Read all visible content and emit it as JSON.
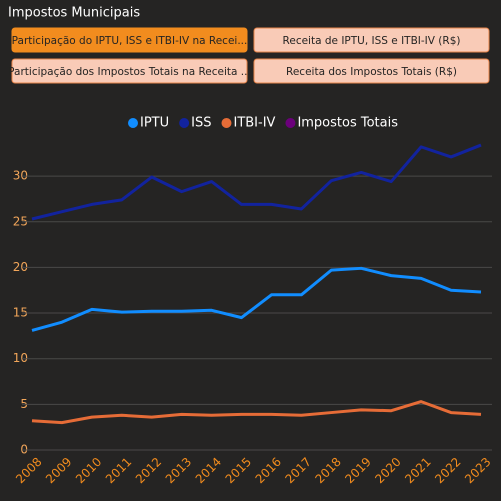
{
  "header": {
    "title": "Impostos Municipais"
  },
  "buttons": [
    {
      "label": "Participação do IPTU, ISS e ITBI-IV na Recei...",
      "selected": true
    },
    {
      "label": "Receita de IPTU, ISS e ITBI-IV (R$)",
      "selected": false
    },
    {
      "label": "Participação dos Impostos Totais na Receita ...",
      "selected": false
    },
    {
      "label": "Receita dos Impostos Totais (R$)",
      "selected": false
    }
  ],
  "chart_data": {
    "type": "line",
    "categories": [
      "2008",
      "2009",
      "2010",
      "2011",
      "2012",
      "2013",
      "2014",
      "2015",
      "2016",
      "2017",
      "2018",
      "2019",
      "2020",
      "2021",
      "2022",
      "2023"
    ],
    "series": [
      {
        "name": "IPTU",
        "color": "#118dff",
        "values": [
          13.1,
          14.0,
          15.4,
          15.1,
          15.2,
          15.2,
          15.3,
          14.5,
          17.0,
          17.0,
          19.7,
          19.9,
          19.1,
          18.8,
          17.5,
          17.3
        ]
      },
      {
        "name": "ISS",
        "color": "#12239e",
        "values": [
          25.3,
          26.1,
          26.9,
          27.4,
          29.9,
          28.3,
          29.4,
          26.9,
          26.9,
          26.4,
          29.5,
          30.4,
          29.4,
          33.2,
          32.1,
          33.4
        ]
      },
      {
        "name": "ITBI-IV",
        "color": "#e66c37",
        "values": [
          3.2,
          3.0,
          3.6,
          3.8,
          3.6,
          3.9,
          3.8,
          3.9,
          3.9,
          3.8,
          4.1,
          4.4,
          4.3,
          5.3,
          4.1,
          3.9
        ]
      },
      {
        "name": "Impostos Totais",
        "color": "#6b007b",
        "values": [
          null,
          null,
          null,
          null,
          null,
          null,
          null,
          null,
          null,
          null,
          null,
          null,
          null,
          null,
          null,
          null
        ]
      }
    ],
    "ylim": [
      0,
      34
    ],
    "yticks": [
      0,
      5,
      10,
      15,
      20,
      25,
      30
    ],
    "grid": true,
    "legend": "top"
  }
}
